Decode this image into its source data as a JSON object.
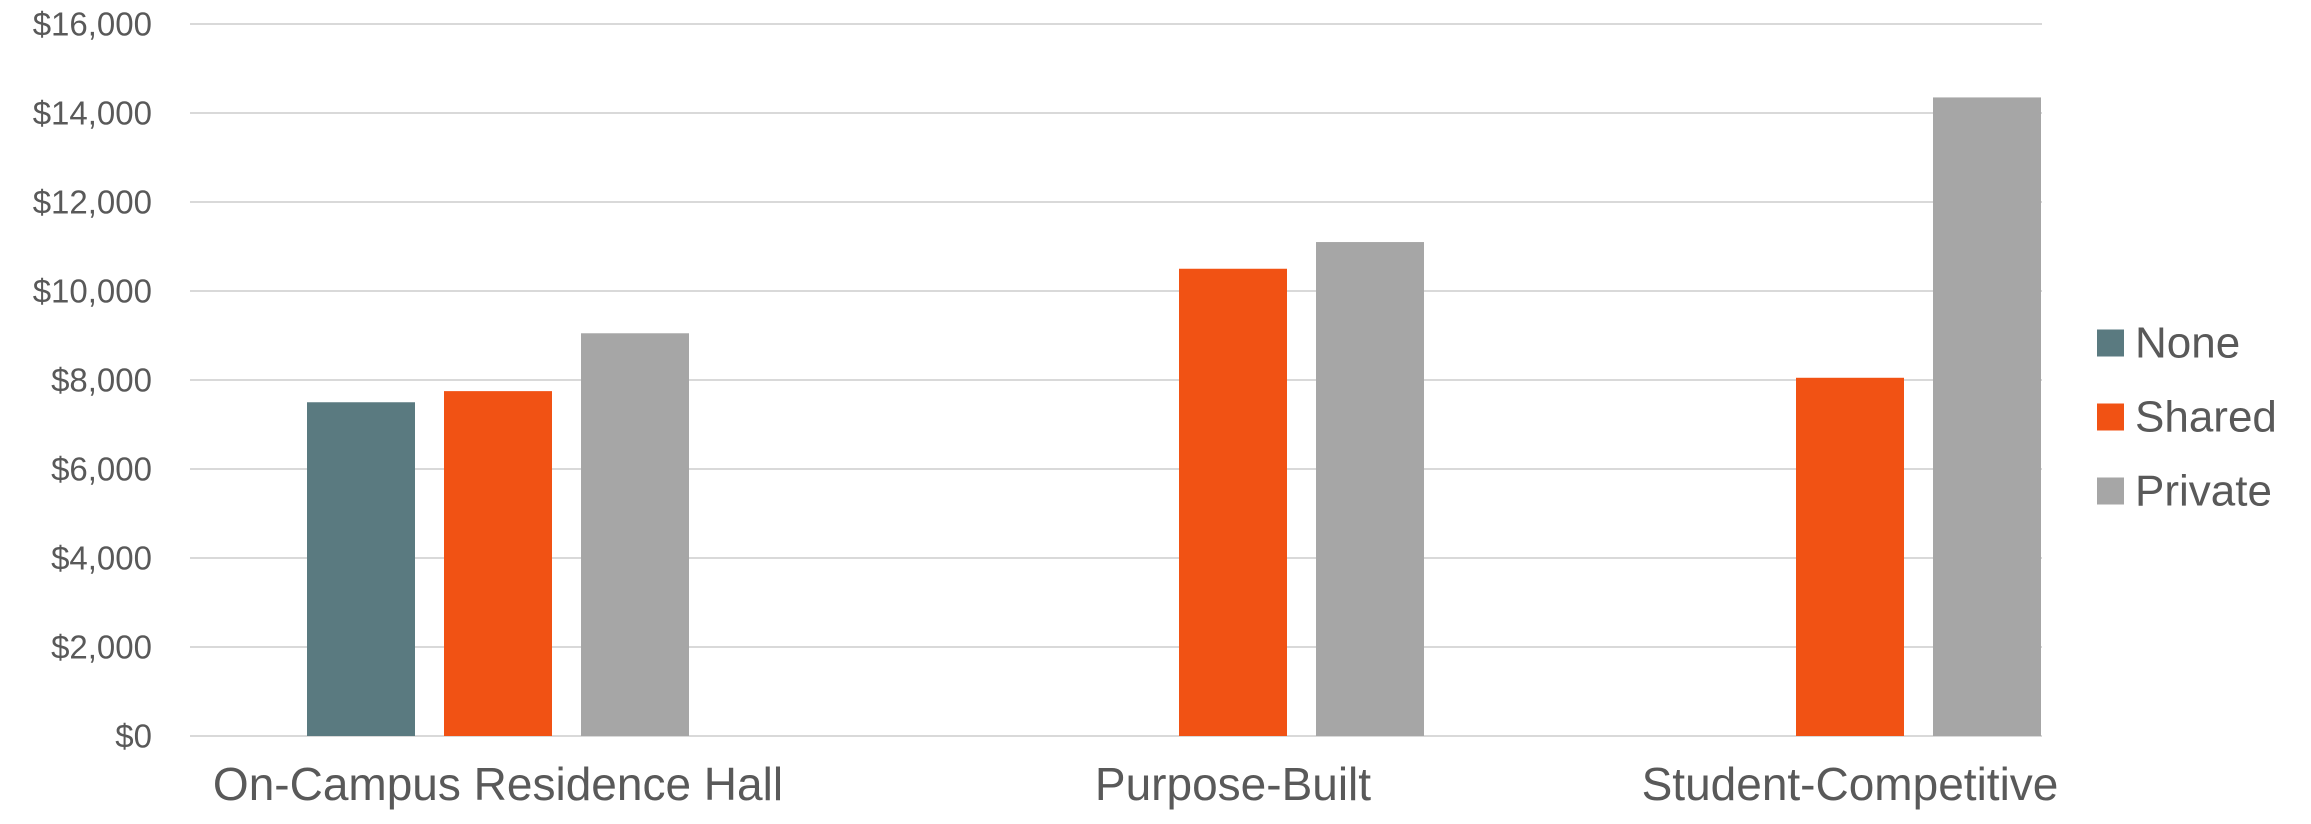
{
  "chart_data": {
    "type": "bar",
    "categories": [
      "On-Campus Residence Hall",
      "Purpose-Built",
      "Student-Competitive"
    ],
    "series": [
      {
        "name": "None",
        "color": "#5a7a80",
        "values": [
          7500,
          null,
          null
        ]
      },
      {
        "name": "Shared",
        "color": "#f15214",
        "values": [
          7750,
          10500,
          8050
        ]
      },
      {
        "name": "Private",
        "color": "#a6a6a6",
        "values": [
          9050,
          11100,
          14350
        ]
      }
    ],
    "yticks": [
      "$0",
      "$2,000",
      "$4,000",
      "$6,000",
      "$8,000",
      "$10,000",
      "$12,000",
      "$14,000",
      "$16,000"
    ],
    "ylim": [
      0,
      16000
    ],
    "grid": true,
    "legend_position": "right"
  }
}
